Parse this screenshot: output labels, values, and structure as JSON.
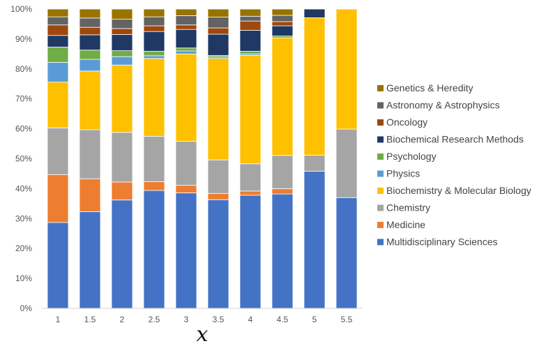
{
  "chart_data": {
    "type": "bar",
    "stacked": true,
    "normalized": true,
    "title": "",
    "xlabel": "x",
    "ylabel": "",
    "ylim": [
      0,
      100
    ],
    "yticks": [
      "0%",
      "10%",
      "20%",
      "30%",
      "40%",
      "50%",
      "60%",
      "70%",
      "80%",
      "90%",
      "100%"
    ],
    "categories": [
      "1",
      "1.5",
      "2",
      "2.5",
      "3",
      "3.5",
      "4",
      "4.5",
      "5",
      "5.5"
    ],
    "grid": false,
    "legend_position": "right",
    "series": [
      {
        "name": "Multidisciplinary Sciences",
        "color": "#4472C4",
        "values": [
          28.7,
          32.3,
          36.2,
          39.4,
          38.6,
          36.3,
          37.8,
          38.2,
          45.8,
          37.0
        ]
      },
      {
        "name": "Medicine",
        "color": "#ED7D31",
        "values": [
          16.0,
          11.0,
          6.0,
          2.9,
          2.5,
          2.1,
          1.4,
          1.8,
          0,
          0
        ]
      },
      {
        "name": "Chemistry",
        "color": "#A5A5A5",
        "values": [
          15.6,
          16.4,
          16.6,
          15.2,
          14.7,
          11.2,
          9.1,
          11.1,
          5.4,
          22.9
        ]
      },
      {
        "name": "Biochemistry & Molecular Biology",
        "color": "#FFC000",
        "values": [
          15.3,
          19.6,
          22.5,
          26.0,
          29.2,
          33.9,
          36.2,
          39.3,
          45.9,
          40.1
        ]
      },
      {
        "name": "Physics",
        "color": "#5B9BD5",
        "values": [
          6.6,
          3.9,
          2.8,
          0.9,
          1.0,
          0.5,
          0.5,
          0,
          0,
          0
        ]
      },
      {
        "name": "Psychology",
        "color": "#70AD47",
        "values": [
          5.1,
          3.1,
          2.0,
          1.5,
          1.0,
          0.5,
          0.9,
          0.6,
          0,
          0
        ]
      },
      {
        "name": "Biochemical Research Methods",
        "color": "#1F3864",
        "values": [
          3.9,
          5.1,
          5.4,
          6.6,
          6.2,
          7.1,
          7.0,
          3.4,
          2.9,
          0
        ]
      },
      {
        "name": "Oncology",
        "color": "#9E480E",
        "values": [
          3.5,
          2.5,
          2.0,
          1.9,
          1.5,
          2.1,
          3.1,
          1.4,
          0,
          0
        ]
      },
      {
        "name": "Astronomy & Astrophysics",
        "color": "#636363",
        "values": [
          2.7,
          3.1,
          3.1,
          3.0,
          3.1,
          3.6,
          1.6,
          2.1,
          0,
          0
        ]
      },
      {
        "name": "Genetics & Heredity",
        "color": "#997300",
        "values": [
          2.6,
          3.0,
          3.4,
          2.6,
          2.2,
          2.7,
          2.4,
          2.1,
          0,
          0
        ]
      }
    ]
  }
}
